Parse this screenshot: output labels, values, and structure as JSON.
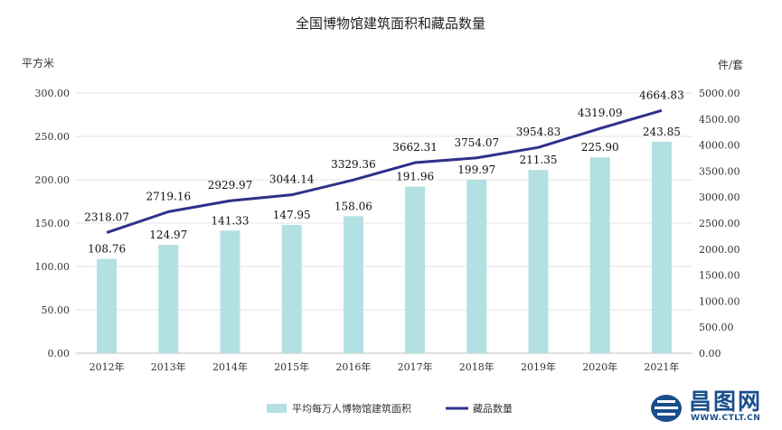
{
  "chart_data": {
    "type": "bar+line",
    "title": "全国博物馆建筑面积和藏品数量",
    "left_unit": "平方米",
    "right_unit": "件/套",
    "categories": [
      "2012年",
      "2013年",
      "2014年",
      "2015年",
      "2016年",
      "2017年",
      "2018年",
      "2019年",
      "2020年",
      "2021年"
    ],
    "series": [
      {
        "name": "平均每万人博物馆建筑面积",
        "kind": "bar",
        "axis": "left",
        "color": "#b3e0e2",
        "values": [
          108.76,
          124.97,
          141.33,
          147.95,
          158.06,
          191.96,
          199.97,
          211.35,
          225.9,
          243.85
        ],
        "labels": [
          "108.76",
          "124.97",
          "141.33",
          "147.95",
          "158.06",
          "191.96",
          "199.97",
          "211.35",
          "225.90",
          "243.85"
        ]
      },
      {
        "name": "藏品数量",
        "kind": "line",
        "axis": "right",
        "color": "#2e3188",
        "values": [
          2318.07,
          2719.16,
          2929.97,
          3044.14,
          3329.36,
          3662.31,
          3754.07,
          3954.83,
          4319.09,
          4664.83
        ],
        "labels": [
          "2318.07",
          "2719.16",
          "2929.97",
          "3044.14",
          "3329.36",
          "3662.31",
          "3754.07",
          "3954.83",
          "4319.09",
          "4664.83"
        ]
      }
    ],
    "left_axis": {
      "min": 0,
      "max": 300,
      "step": 50,
      "ticks": [
        "0.00",
        "50.00",
        "100.00",
        "150.00",
        "200.00",
        "250.00",
        "300.00"
      ]
    },
    "right_axis": {
      "min": 0,
      "max": 5000,
      "step": 500,
      "ticks": [
        "0.00",
        "500.00",
        "1000.00",
        "1500.00",
        "2000.00",
        "2500.00",
        "3000.00",
        "3500.00",
        "4000.00",
        "4500.00",
        "5000.00"
      ]
    },
    "grid": true,
    "legend_position": "bottom-center"
  },
  "watermark": {
    "name": "昌图网",
    "url": "WWW.CTLT.CN",
    "color": "#1a4e8c"
  }
}
